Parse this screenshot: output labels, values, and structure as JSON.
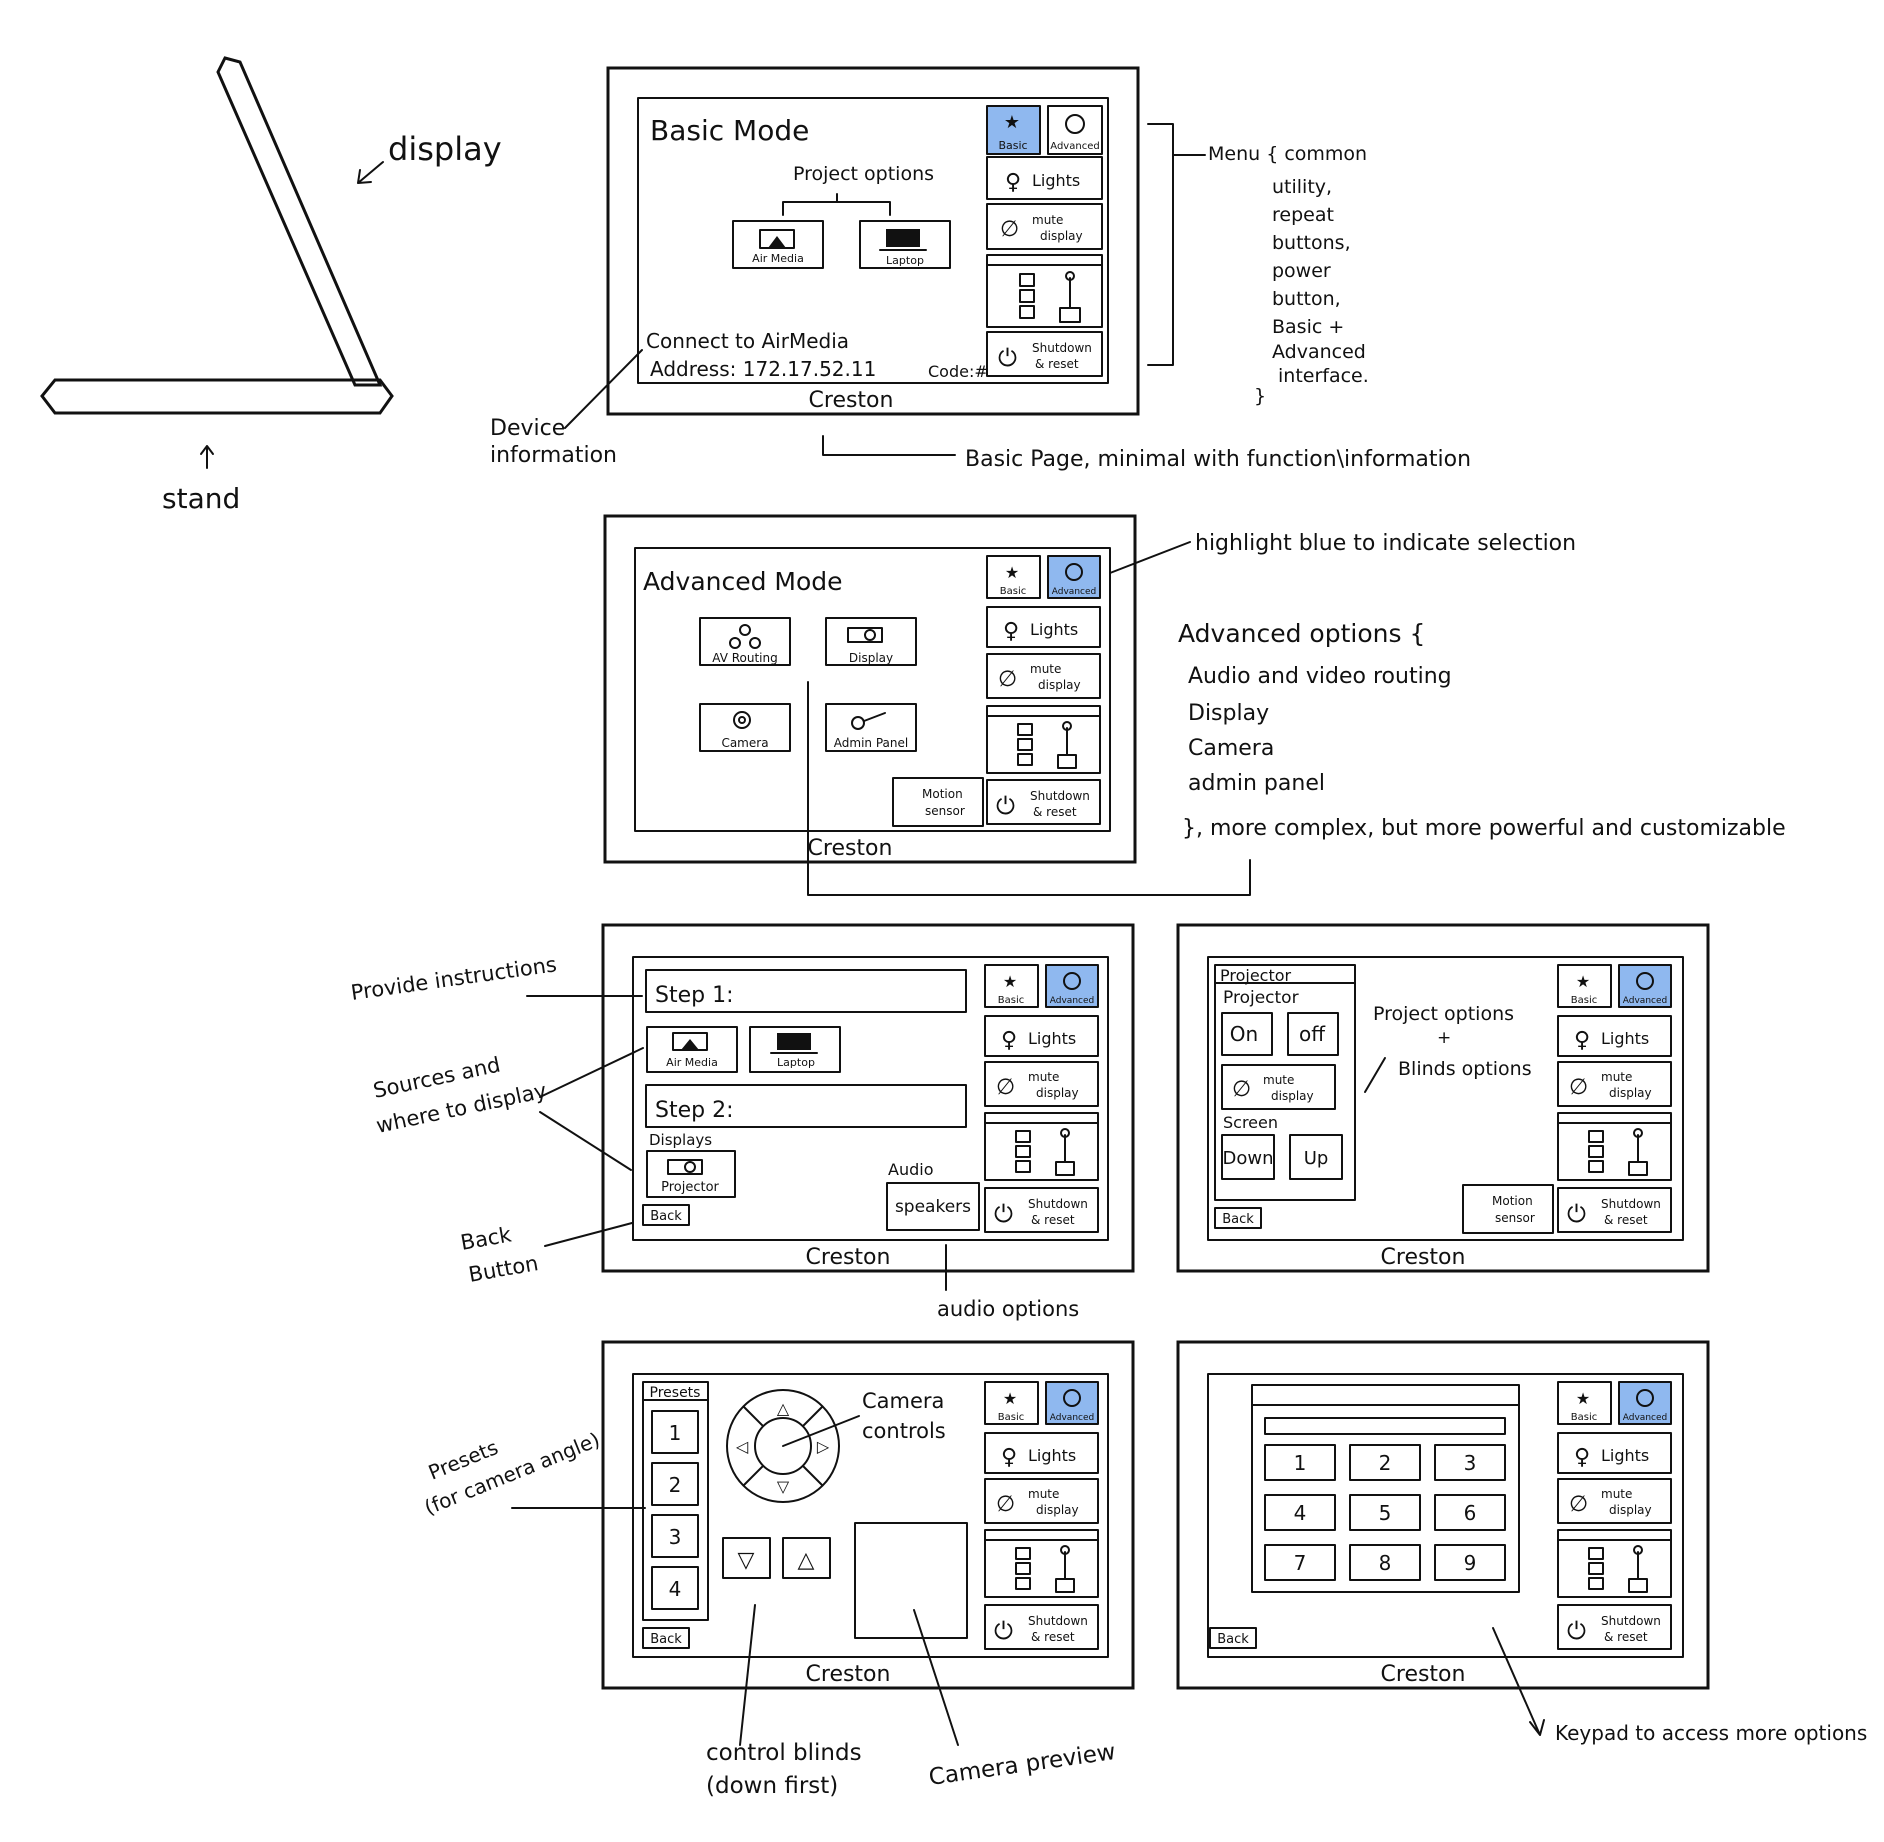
{
  "colors": {
    "highlight": "#8fb8ef",
    "ink": "#111111"
  },
  "device_sketch": {
    "display_label": "display",
    "stand_label": "stand"
  },
  "brand": "Creston",
  "menu": {
    "basic": "Basic",
    "advanced": "Advanced",
    "lights": "Lights",
    "mute_line1": "mute",
    "mute_line2": "display",
    "shutdown_line1": "Shutdown",
    "shutdown_line2": "& reset",
    "motion_line1": "Motion",
    "motion_line2": "sensor",
    "back": "Back"
  },
  "basic_screen": {
    "title": "Basic Mode",
    "project_options": "Project options",
    "source_airmedia": "Air Media",
    "source_laptop": "Laptop",
    "connect_line1": "Connect to AirMedia",
    "connect_line2": "Address: 172.17.52.11",
    "code": "Code:#"
  },
  "advanced_screen": {
    "title": "Advanced Mode",
    "av_routing": "AV Routing",
    "display": "Display",
    "camera": "Camera",
    "admin_panel": "Admin Panel"
  },
  "routing_screen": {
    "step1": "Step 1:",
    "step2": "Step 2:",
    "displays": "Displays",
    "projector": "Projector",
    "audio": "Audio",
    "speakers": "speakers",
    "airmedia": "Air Media",
    "laptop": "Laptop"
  },
  "projector_screen": {
    "panel_title": "Projector",
    "projector_label": "Projector",
    "on": "On",
    "off": "off",
    "screen_label": "Screen",
    "down": "Down",
    "up": "Up"
  },
  "camera_screen": {
    "presets_label": "Presets",
    "presets": [
      "1",
      "2",
      "3",
      "4"
    ]
  },
  "keypad_screen": {
    "keys": [
      "1",
      "2",
      "3",
      "4",
      "5",
      "6",
      "7",
      "8",
      "9"
    ]
  },
  "annotations": {
    "menu_common": [
      "Menu { common",
      "utility,",
      "repeat",
      "buttons,",
      "power",
      "button,",
      "Basic +",
      "Advanced",
      "interface.",
      "}"
    ],
    "device_information": [
      "Device",
      "information"
    ],
    "basic_page": "Basic Page, minimal with function\\information",
    "highlight": "highlight blue to indicate selection",
    "advanced_options": [
      "Advanced options {",
      "Audio and video routing",
      "Display",
      "Camera",
      "admin panel",
      "}, more complex, but more powerful and customizable"
    ],
    "provide_instructions": "Provide instructions",
    "sources_display": [
      "Sources and",
      "where to display"
    ],
    "back_button": [
      "Back",
      "Button"
    ],
    "audio_options": "audio options",
    "project_blinds": [
      "Project options",
      "+",
      "Blinds options"
    ],
    "presets_note": [
      "Presets",
      "(for camera angle)"
    ],
    "camera_controls": [
      "Camera",
      "controls"
    ],
    "control_blinds": [
      "control blinds",
      "(down first)"
    ],
    "camera_preview": "Camera preview",
    "keypad_note": "Keypad to access more options"
  }
}
